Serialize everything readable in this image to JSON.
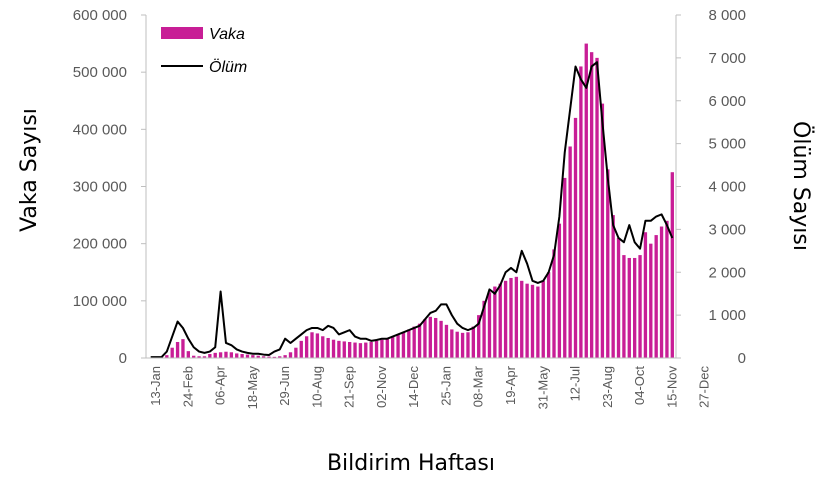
{
  "chart_data": {
    "type": "bar",
    "xlabel": "Bildirim Haftası",
    "ylabel_left": "Vaka Sayısı",
    "ylabel_right": "Ölüm Sayısı",
    "ylim_left": [
      0,
      600000
    ],
    "ylim_right": [
      0,
      8000
    ],
    "yticks_left": [
      "0",
      "100 000",
      "200 000",
      "300 000",
      "400 000",
      "500 000",
      "600 000"
    ],
    "yticks_right": [
      "0",
      "1 000",
      "2 000",
      "3 000",
      "4 000",
      "5 000",
      "6 000",
      "7 000",
      "8 000"
    ],
    "x_tick_labels": [
      "13-Jan",
      "24-Feb",
      "06-Apr",
      "18-May",
      "29-Jun",
      "10-Aug",
      "21-Sep",
      "02-Nov",
      "14-Dec",
      "25-Jan",
      "08-Mar",
      "19-Apr",
      "31-May",
      "12-Jul",
      "23-Aug",
      "04-Oct",
      "15-Nov",
      "27-Dec"
    ],
    "x_tick_every": 6,
    "grid": false,
    "legend_position": "top-left",
    "colors": {
      "bar": "#c81e96",
      "line": "#000000",
      "axis": "#bfbfbf"
    },
    "series": [
      {
        "name": "Vaka",
        "type": "bar",
        "axis": "left",
        "values": [
          500,
          1000,
          2000,
          5000,
          18000,
          28000,
          33000,
          12000,
          4000,
          3000,
          3000,
          7000,
          9000,
          10000,
          11000,
          10000,
          8000,
          7000,
          6000,
          5000,
          4000,
          3000,
          2500,
          2000,
          3000,
          5000,
          10000,
          18000,
          30000,
          38000,
          45000,
          43000,
          38000,
          35000,
          32000,
          30000,
          29000,
          28000,
          27000,
          26000,
          27000,
          28000,
          30000,
          32000,
          34000,
          38000,
          42000,
          45000,
          50000,
          55000,
          60000,
          68000,
          72000,
          70000,
          65000,
          58000,
          50000,
          46000,
          44000,
          45000,
          55000,
          75000,
          100000,
          115000,
          125000,
          130000,
          135000,
          140000,
          142000,
          135000,
          130000,
          128000,
          125000,
          135000,
          150000,
          190000,
          235000,
          315000,
          370000,
          420000,
          510000,
          550000,
          535000,
          525000,
          445000,
          330000,
          250000,
          210000,
          180000,
          175000,
          175000,
          180000,
          220000,
          200000,
          215000,
          230000,
          240000,
          325000
        ]
      },
      {
        "name": "Ölüm",
        "type": "line",
        "axis": "right",
        "values": [
          20,
          20,
          20,
          150,
          500,
          850,
          700,
          450,
          250,
          150,
          120,
          150,
          250,
          1550,
          350,
          300,
          200,
          150,
          120,
          100,
          100,
          80,
          70,
          150,
          200,
          450,
          350,
          450,
          550,
          650,
          700,
          700,
          650,
          750,
          700,
          550,
          600,
          650,
          500,
          450,
          450,
          400,
          420,
          450,
          450,
          500,
          550,
          600,
          650,
          700,
          750,
          900,
          1050,
          1100,
          1250,
          1250,
          1000,
          800,
          700,
          650,
          700,
          800,
          1200,
          1600,
          1500,
          1700,
          2000,
          2100,
          2000,
          2500,
          2200,
          1800,
          1750,
          1800,
          2000,
          2400,
          3300,
          4800,
          5800,
          6800,
          6500,
          6300,
          6800,
          6900,
          5500,
          4200,
          3100,
          2800,
          2700,
          3100,
          2700,
          2550,
          3200,
          3200,
          3300,
          3350,
          3100,
          2800
        ]
      }
    ]
  }
}
